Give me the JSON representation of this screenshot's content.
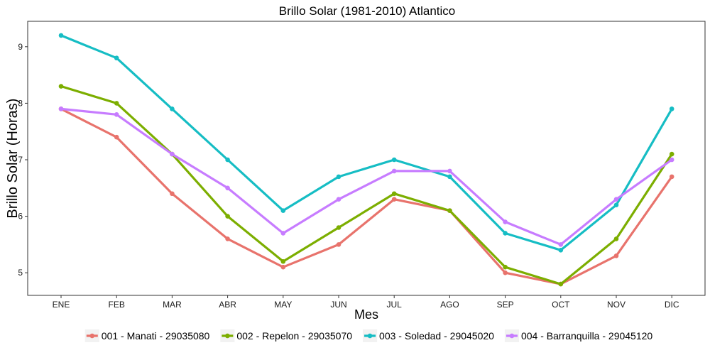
{
  "chart_data": {
    "type": "line",
    "title": "Brillo Solar (1981-2010)  Atlantico",
    "xlabel": "Mes",
    "ylabel": "Brillo Solar (Horas)",
    "categories": [
      "ENE",
      "FEB",
      "MAR",
      "ABR",
      "MAY",
      "JUN",
      "JUL",
      "AGO",
      "SEP",
      "OCT",
      "NOV",
      "DIC"
    ],
    "yticks": [
      5,
      6,
      7,
      8,
      9
    ],
    "ylim": [
      4.6,
      9.45
    ],
    "grid": false,
    "legend_position": "bottom",
    "series": [
      {
        "name": "001 - Manati - 29035080",
        "color": "#E8736C",
        "values": [
          7.9,
          7.4,
          6.4,
          5.6,
          5.1,
          5.5,
          6.3,
          6.1,
          5.0,
          4.8,
          5.3,
          6.7
        ]
      },
      {
        "name": "002 - Repelon - 29035070",
        "color": "#7CAE00",
        "values": [
          8.3,
          8.0,
          7.1,
          6.0,
          5.2,
          5.8,
          6.4,
          6.1,
          5.1,
          4.8,
          5.6,
          7.1
        ]
      },
      {
        "name": "003 - Soledad - 29045020",
        "color": "#16BDC4",
        "values": [
          9.2,
          8.8,
          7.9,
          7.0,
          6.1,
          6.7,
          7.0,
          6.7,
          5.7,
          5.4,
          6.2,
          7.9
        ]
      },
      {
        "name": "004 - Barranquilla - 29045120",
        "color": "#C77CFF",
        "values": [
          7.9,
          7.8,
          7.1,
          6.5,
          5.7,
          6.3,
          6.8,
          6.8,
          5.9,
          5.5,
          6.3,
          7.0
        ]
      }
    ]
  }
}
